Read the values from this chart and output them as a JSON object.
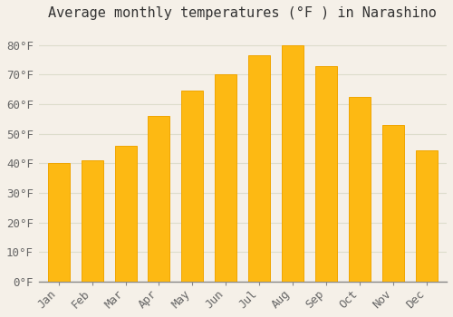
{
  "title": "Average monthly temperatures (°F ) in Narashino",
  "months": [
    "Jan",
    "Feb",
    "Mar",
    "Apr",
    "May",
    "Jun",
    "Jul",
    "Aug",
    "Sep",
    "Oct",
    "Nov",
    "Dec"
  ],
  "values": [
    40,
    41,
    46,
    56,
    64.5,
    70,
    76.5,
    80,
    73,
    62.5,
    53,
    44.5
  ],
  "bar_color_face": "#FDB913",
  "bar_color_edge": "#F0A500",
  "background_color": "#F5F0E8",
  "grid_color": "#DDDDCC",
  "yticks": [
    0,
    10,
    20,
    30,
    40,
    50,
    60,
    70,
    80
  ],
  "ylim": [
    0,
    86
  ],
  "title_fontsize": 11,
  "tick_fontsize": 9,
  "tick_font_family": "monospace"
}
